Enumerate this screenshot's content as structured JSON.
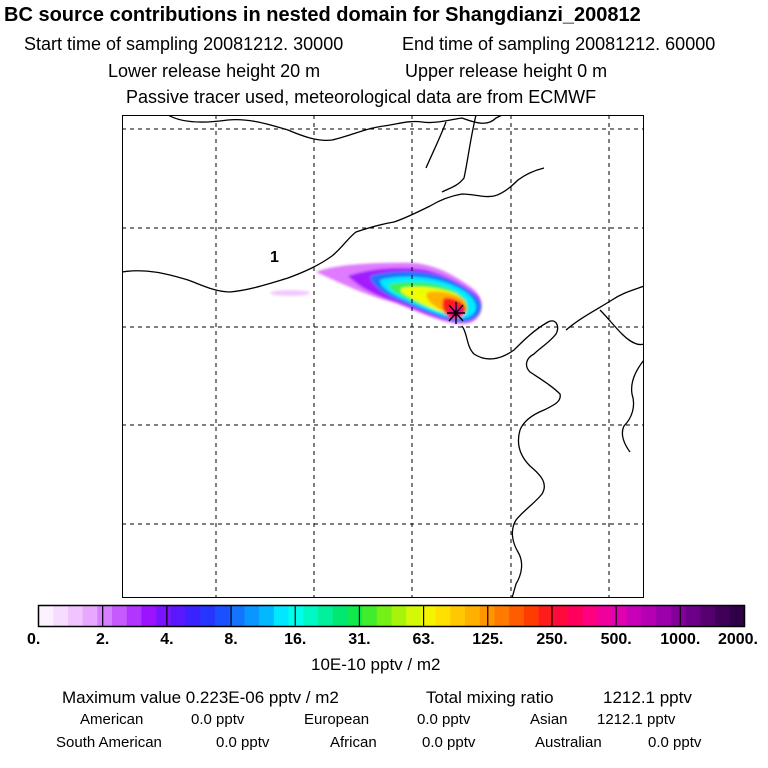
{
  "header": {
    "title": "BC  source contributions in nested domain for Shangdianzi_200812",
    "start_time_label": "Start time of sampling 20081212. 30000",
    "end_time_label": "End time of sampling 20081212. 60000",
    "lower_height_label": "Lower release height   20 m",
    "upper_height_label": "Upper release height    0 m",
    "tracer_label": "Passive tracer used, meteorological data are from ECMWF"
  },
  "map": {
    "region_label": "1",
    "receptor_marker": "asterisk-marker",
    "plume_colors": {
      "faint": "#f3c8ff",
      "light": "#c84bff",
      "purple": "#9b1bff",
      "blue": "#1e6bff",
      "cyan": "#00e7ff",
      "green": "#3cf05a",
      "yellow": "#f2ff00",
      "orange": "#ffb300",
      "red": "#ff1b1b",
      "magenta": "#ff00aa"
    }
  },
  "colorbar": {
    "unit": "10E-10 pptv / m2",
    "ticks": [
      "0.",
      "2.",
      "4.",
      "8.",
      "16.",
      "31.",
      "63.",
      "125.",
      "250.",
      "500.",
      "1000.",
      "2000."
    ],
    "colors": [
      "#fcf2ff",
      "#f6dcff",
      "#f0c4ff",
      "#e8a8ff",
      "#d680ff",
      "#c55aff",
      "#b236ff",
      "#9c14ff",
      "#7a14ff",
      "#5a18ff",
      "#3a22ff",
      "#2636ff",
      "#1a50ff",
      "#1274ff",
      "#0a96ff",
      "#04b8ff",
      "#00e8ff",
      "#00ffea",
      "#00f8c4",
      "#00f09c",
      "#00e872",
      "#10e84c",
      "#40ec2c",
      "#74f016",
      "#a6f40a",
      "#d4f806",
      "#f4f400",
      "#ffe000",
      "#ffc800",
      "#ffb000",
      "#ff9600",
      "#ff7a00",
      "#ff5c00",
      "#ff3c00",
      "#ff1c1c",
      "#ff0a3c",
      "#ff005c",
      "#ff0080",
      "#f0009c",
      "#e000b0",
      "#c800b8",
      "#b400b0",
      "#9c00a8",
      "#84009a",
      "#6c0088",
      "#560070",
      "#40005a",
      "#300048"
    ]
  },
  "stats": {
    "max_label": "Maximum value  0.223E-06 pptv / m2",
    "total_label": "Total mixing ratio",
    "total_value": "1212.1 pptv",
    "american_label": "American",
    "american_value": "0.0 pptv",
    "european_label": "European",
    "european_value": "0.0 pptv",
    "asian_label": "Asian",
    "asian_value": "1212.1 pptv",
    "south_american_label": "South American",
    "south_american_value": "0.0 pptv",
    "african_label": "African",
    "african_value": "0.0 pptv",
    "australian_label": "Australian",
    "australian_value": "0.0 pptv"
  }
}
